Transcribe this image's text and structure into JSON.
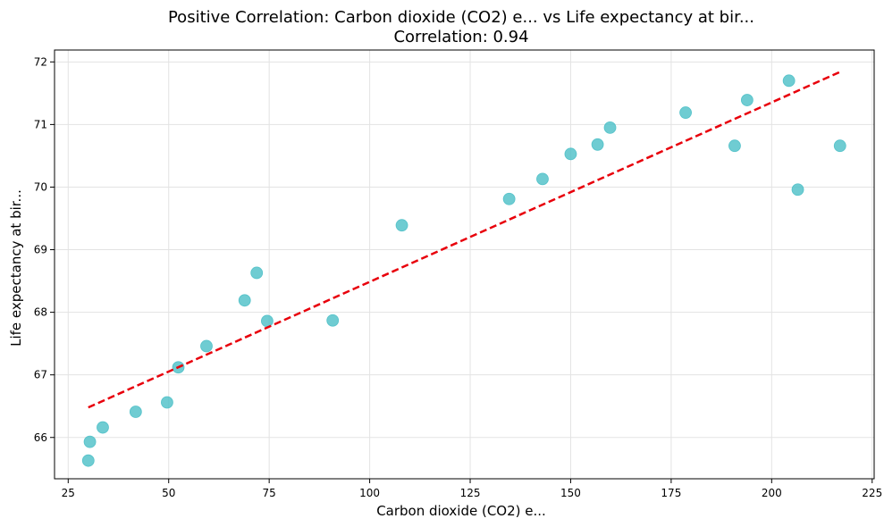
{
  "chart_data": {
    "type": "scatter",
    "title": "Positive Correlation: Carbon dioxide (CO2) e... vs Life expectancy at bir...",
    "subtitle": "Correlation: 0.94",
    "xlabel": "Carbon dioxide (CO2) e...",
    "ylabel": "Life expectancy at bir...",
    "xlim": [
      21.6,
      225.5
    ],
    "ylim": [
      65.34,
      72.19
    ],
    "xticks": [
      25,
      50,
      75,
      100,
      125,
      150,
      175,
      200,
      225
    ],
    "yticks": [
      66,
      67,
      68,
      69,
      70,
      71,
      72
    ],
    "grid": true,
    "point_color": "#4bbfc7",
    "trend_color": "#e8000b",
    "points": [
      {
        "x": 30.0,
        "y": 65.63
      },
      {
        "x": 30.4,
        "y": 65.93
      },
      {
        "x": 33.6,
        "y": 66.16
      },
      {
        "x": 41.8,
        "y": 66.41
      },
      {
        "x": 49.6,
        "y": 66.56
      },
      {
        "x": 52.4,
        "y": 67.12
      },
      {
        "x": 59.4,
        "y": 67.46
      },
      {
        "x": 68.9,
        "y": 68.19
      },
      {
        "x": 71.9,
        "y": 68.63
      },
      {
        "x": 74.5,
        "y": 67.86
      },
      {
        "x": 90.8,
        "y": 67.87
      },
      {
        "x": 108.0,
        "y": 69.39
      },
      {
        "x": 134.7,
        "y": 69.81
      },
      {
        "x": 143.0,
        "y": 70.13
      },
      {
        "x": 150.0,
        "y": 70.53
      },
      {
        "x": 156.7,
        "y": 70.68
      },
      {
        "x": 159.8,
        "y": 70.95
      },
      {
        "x": 178.6,
        "y": 71.19
      },
      {
        "x": 190.8,
        "y": 70.66
      },
      {
        "x": 193.9,
        "y": 71.39
      },
      {
        "x": 204.3,
        "y": 71.7
      },
      {
        "x": 206.5,
        "y": 69.96
      },
      {
        "x": 217.0,
        "y": 70.66
      }
    ],
    "trendline": {
      "x": [
        30.0,
        217.0
      ],
      "y": [
        66.48,
        71.84
      ]
    }
  }
}
